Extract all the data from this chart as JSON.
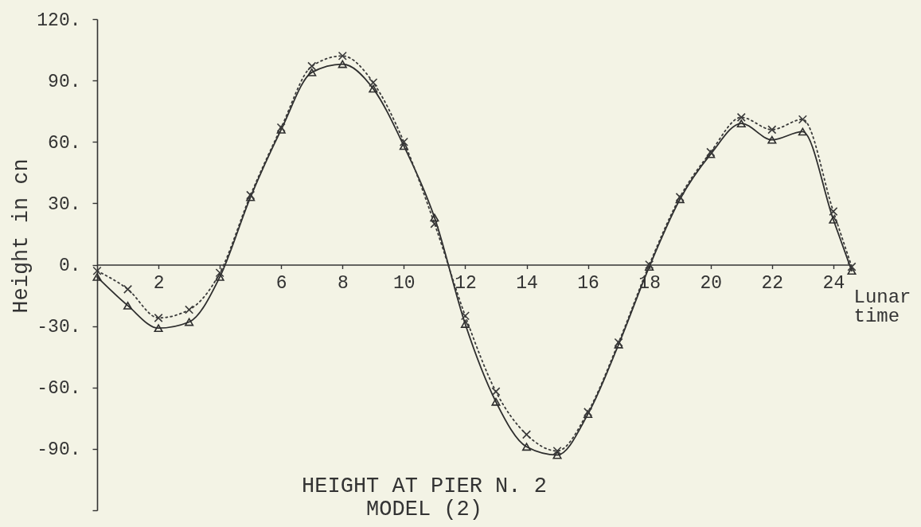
{
  "chart_data": {
    "type": "line",
    "title": "HEIGHT AT PIER N. 2",
    "subtitle": "MODEL (2)",
    "xlabel": "Lunar time",
    "ylabel": "Height in cn",
    "x": [
      0,
      1,
      2,
      3,
      4,
      5,
      6,
      7,
      8,
      9,
      10,
      11,
      12,
      13,
      14,
      15,
      16,
      17,
      18,
      19,
      20,
      21,
      22,
      23,
      24,
      24.6
    ],
    "series": [
      {
        "color": "#2e2e2e",
        "marker": "triangle",
        "line_style": "solid",
        "values": [
          -6,
          -20,
          -31,
          -28,
          -6,
          33,
          66,
          94,
          98,
          86,
          58,
          23,
          -29,
          -67,
          -89,
          -93,
          -73,
          -39,
          -1,
          32,
          54,
          69,
          61,
          65,
          22,
          -3
        ]
      },
      {
        "color": "#3a3a3a",
        "marker": "cross",
        "line_style": "dotted",
        "values": [
          -3,
          -12,
          -26,
          -22,
          -4,
          34,
          67,
          97,
          102,
          89,
          60,
          20,
          -25,
          -62,
          -83,
          -91,
          -72,
          -38,
          0,
          33,
          55,
          72,
          66,
          71,
          26,
          -1
        ]
      }
    ],
    "xlim": [
      0,
      24.6
    ],
    "xticks": [
      2,
      {
        "value": 4,
        "label": null
      },
      6,
      8,
      10,
      12,
      14,
      16,
      18,
      20,
      22,
      24
    ],
    "ylim": [
      -120,
      120
    ],
    "yticks": [
      {
        "value": -120,
        "label": null
      },
      {
        "value": -90,
        "label": "-90."
      },
      {
        "value": -60,
        "label": "-60."
      },
      {
        "value": -30,
        "label": "-30."
      },
      {
        "value": 0,
        "label": "0."
      },
      {
        "value": 30,
        "label": "30."
      },
      {
        "value": 60,
        "label": "60."
      },
      {
        "value": 90,
        "label": "90."
      },
      {
        "value": 120,
        "label": "120."
      }
    ]
  }
}
